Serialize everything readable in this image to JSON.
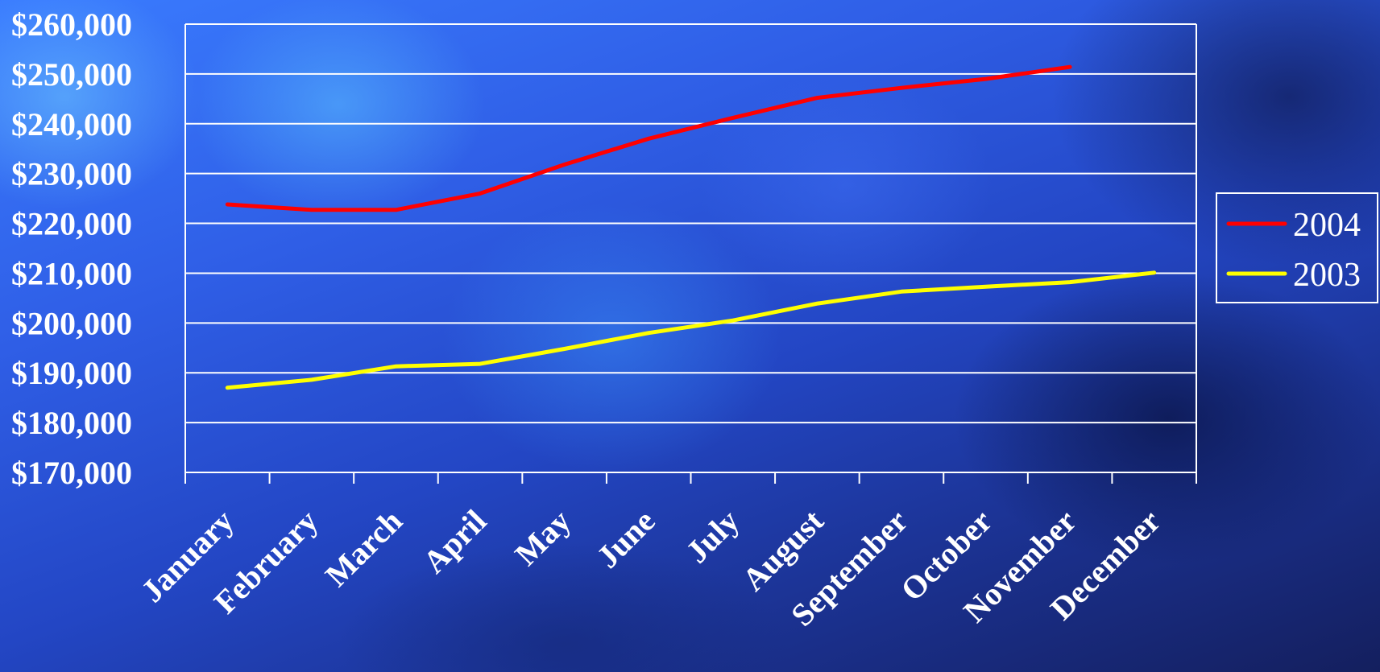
{
  "chart_data": {
    "type": "line",
    "title": "",
    "xlabel": "",
    "ylabel": "",
    "categories": [
      "January",
      "February",
      "March",
      "April",
      "May",
      "June",
      "July",
      "August",
      "September",
      "October",
      "November",
      "December"
    ],
    "ylim": [
      170000,
      260000
    ],
    "y_ticks": [
      170000,
      180000,
      190000,
      200000,
      210000,
      220000,
      230000,
      240000,
      250000,
      260000
    ],
    "y_tick_labels": [
      "$170,000",
      "$180,000",
      "$190,000",
      "$200,000",
      "$210,000",
      "$220,000",
      "$230,000",
      "$240,000",
      "$250,000",
      "$260,000"
    ],
    "grid": true,
    "legend_position": "right",
    "series": [
      {
        "name": "2004",
        "color": "#ff0000",
        "values": [
          223800,
          222700,
          222700,
          226000,
          231800,
          237000,
          241200,
          245200,
          247200,
          249000,
          251400,
          null
        ]
      },
      {
        "name": "2003",
        "color": "#ffff00",
        "values": [
          187000,
          188600,
          191300,
          191800,
          194800,
          198000,
          200500,
          203900,
          206300,
          207300,
          208200,
          210100
        ]
      }
    ],
    "colors": {
      "axis": "#ffffff",
      "grid": "#ffffff",
      "text": "#ffffff"
    }
  }
}
